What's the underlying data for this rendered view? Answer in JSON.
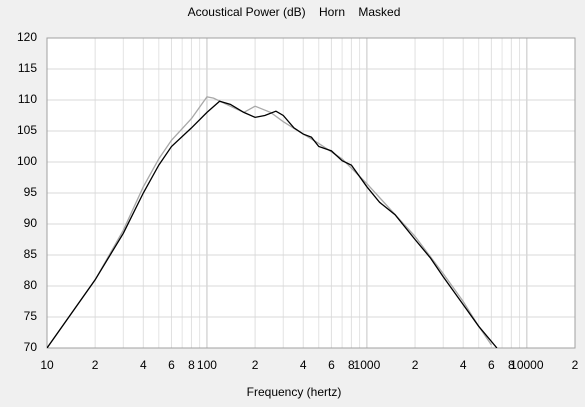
{
  "chart_data": {
    "type": "line",
    "title": "Acoustical Power (dB)    Horn    Masked",
    "x_label": "Frequency (hertz)",
    "xscale": "log",
    "xlim": [
      10,
      20000
    ],
    "ylim": [
      70,
      120
    ],
    "xticks": [
      10,
      {
        "value": 20,
        "label": "2"
      },
      {
        "value": 40,
        "label": "4"
      },
      {
        "value": 60,
        "label": "6"
      },
      {
        "value": 80,
        "label": "8"
      },
      100,
      {
        "value": 200,
        "label": "2"
      },
      {
        "value": 400,
        "label": "4"
      },
      {
        "value": 600,
        "label": "6"
      },
      {
        "value": 800,
        "label": "8"
      },
      1000,
      {
        "value": 2000,
        "label": "2"
      },
      {
        "value": 4000,
        "label": "4"
      },
      {
        "value": 6000,
        "label": "6"
      },
      {
        "value": 8000,
        "label": "8"
      },
      10000,
      {
        "value": 20000,
        "label": "2"
      }
    ],
    "xminorticks": [
      30,
      50,
      70,
      90,
      300,
      500,
      700,
      900,
      3000,
      5000,
      7000,
      9000
    ],
    "yticks": [
      70,
      75,
      80,
      85,
      90,
      95,
      100,
      105,
      110,
      115,
      120
    ],
    "grid": true,
    "series": [
      {
        "color": "#a8a8a8",
        "x": [
          10,
          20,
          30,
          40,
          50,
          60,
          80,
          100,
          110,
          140,
          170,
          200,
          250,
          300,
          400,
          500,
          700,
          1000,
          2000,
          3000,
          4000,
          5000,
          6000
        ],
        "values": [
          70,
          81,
          89,
          96,
          100.5,
          103.5,
          107,
          110.5,
          110.3,
          109,
          108,
          109,
          108,
          106.5,
          104.5,
          103,
          100.5,
          96.5,
          88,
          82,
          77.5,
          73.5,
          70.5
        ]
      },
      {
        "color": "#000000",
        "x": [
          10,
          20,
          30,
          40,
          50,
          60,
          80,
          100,
          120,
          140,
          170,
          200,
          230,
          270,
          300,
          350,
          400,
          450,
          500,
          600,
          700,
          800,
          1000,
          1200,
          1500,
          2000,
          2500,
          3000,
          4000,
          5000,
          6500
        ],
        "values": [
          70,
          81,
          88.5,
          95,
          99.5,
          102.5,
          105.5,
          108,
          109.8,
          109.3,
          108,
          107.2,
          107.5,
          108.2,
          107.5,
          105.5,
          104.5,
          104,
          102.5,
          101.8,
          100.2,
          99.5,
          96,
          93.5,
          91.5,
          87.5,
          84.5,
          81.5,
          77,
          73.5,
          70
        ]
      }
    ]
  }
}
